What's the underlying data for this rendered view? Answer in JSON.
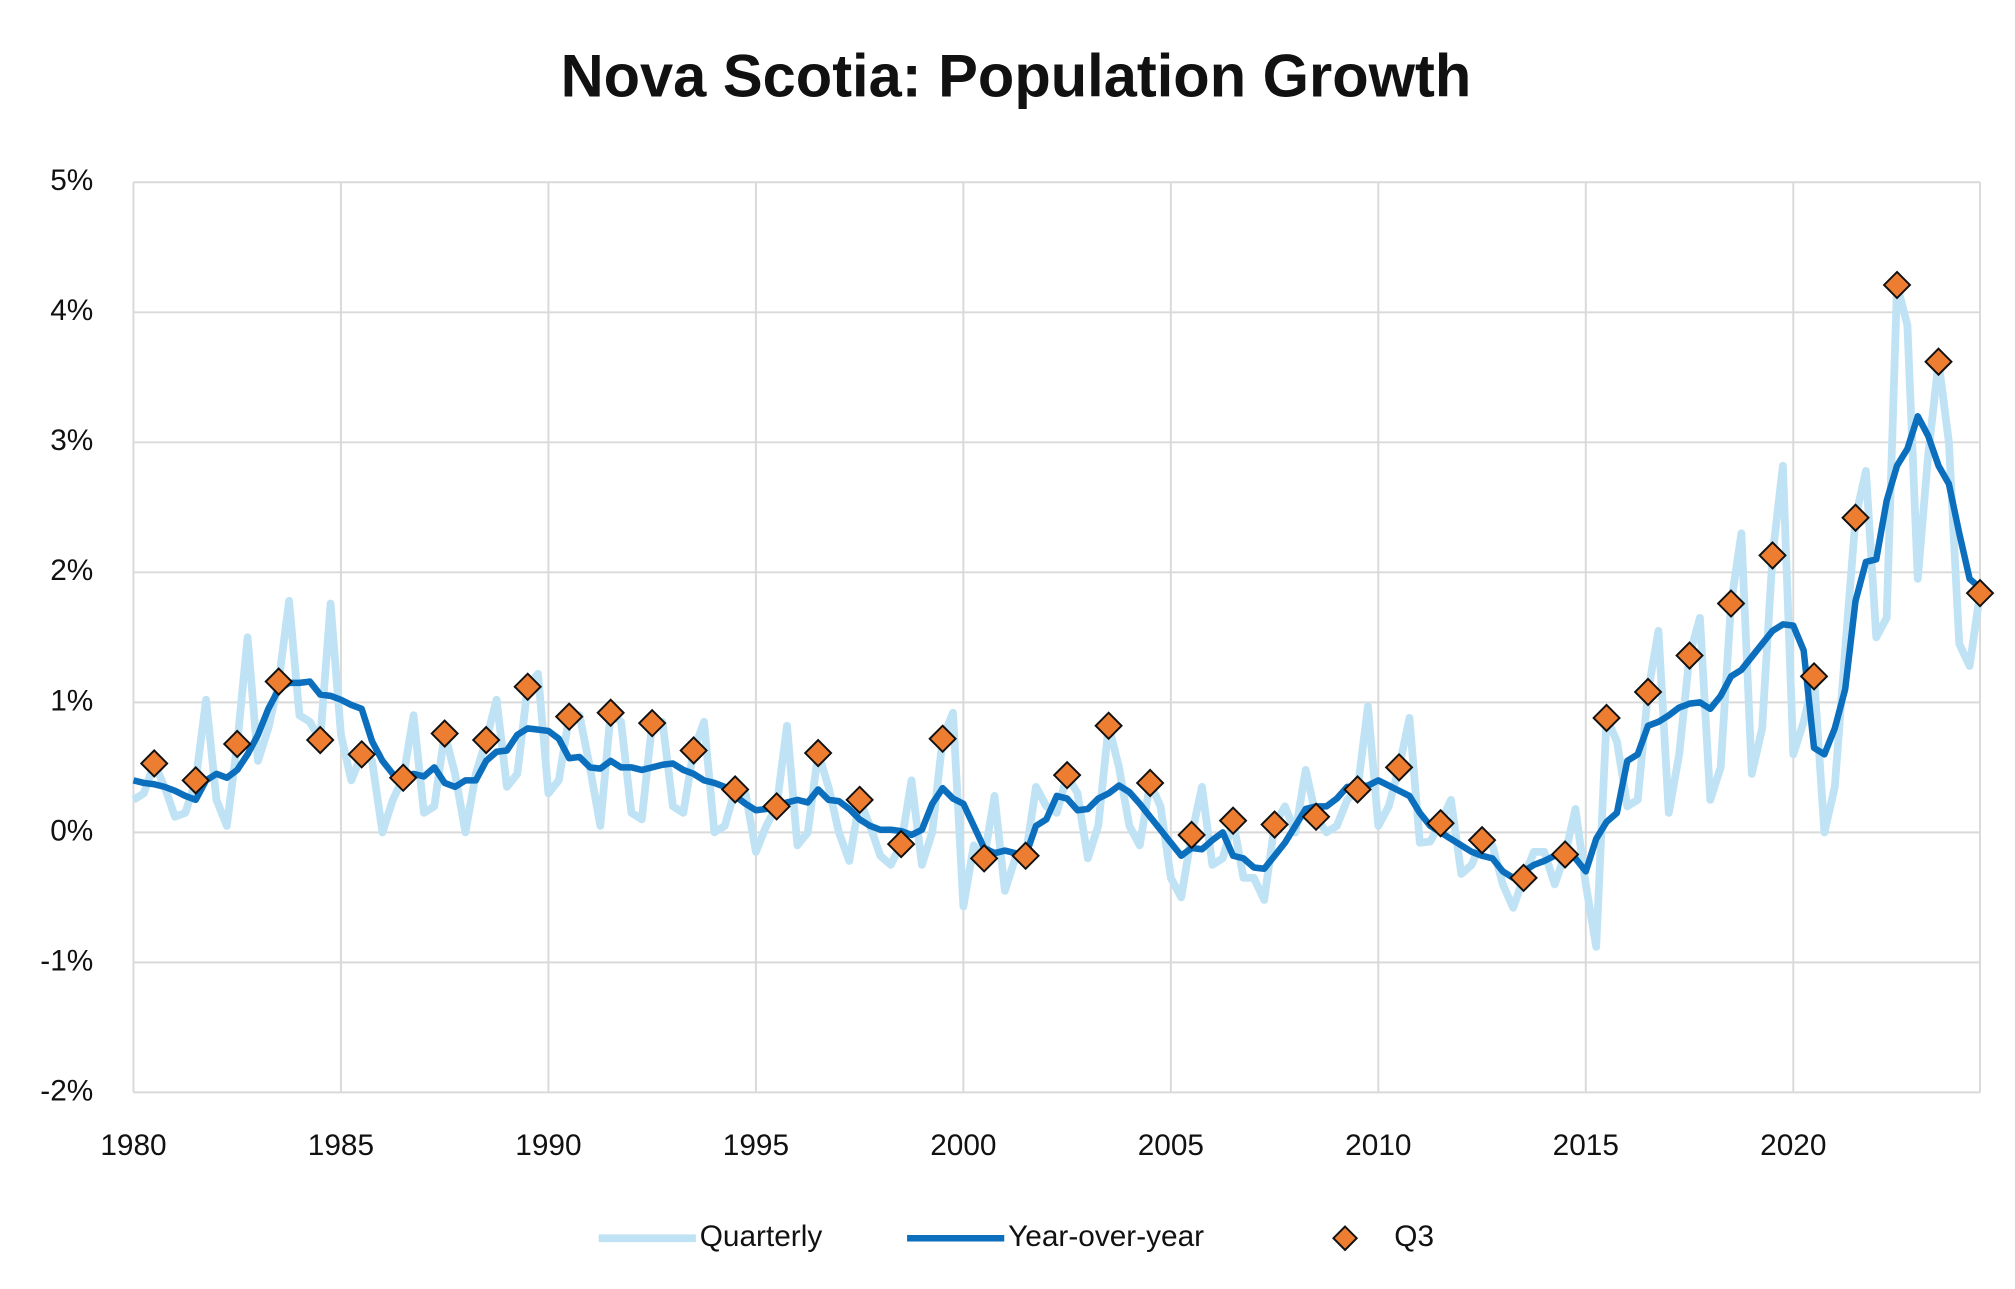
{
  "chart_data": {
    "type": "line",
    "title": "Nova Scotia: Population Growth",
    "xlim": [
      1980,
      2024.5
    ],
    "xticks": [
      1980,
      1985,
      1990,
      1995,
      2000,
      2005,
      2010,
      2015,
      2020
    ],
    "ylim": [
      -2,
      5
    ],
    "yticks": [
      {
        "value": -2,
        "label": "-2%"
      },
      {
        "value": -1,
        "label": "-1%"
      },
      {
        "value": 0,
        "label": "0%"
      },
      {
        "value": 1,
        "label": "1%"
      },
      {
        "value": 2,
        "label": "2%"
      },
      {
        "value": 3,
        "label": "3%"
      },
      {
        "value": 4,
        "label": "4%"
      },
      {
        "value": 5,
        "label": "5%"
      }
    ],
    "grid": true,
    "legend": "bottom",
    "x": [
      1980,
      1980.25,
      1980.5,
      1980.75,
      1981,
      1981.25,
      1981.5,
      1981.75,
      1982,
      1982.25,
      1982.5,
      1982.75,
      1983,
      1983.25,
      1983.5,
      1983.75,
      1984,
      1984.25,
      1984.5,
      1984.75,
      1985,
      1985.25,
      1985.5,
      1985.75,
      1986,
      1986.25,
      1986.5,
      1986.75,
      1987,
      1987.25,
      1987.5,
      1987.75,
      1988,
      1988.25,
      1988.5,
      1988.75,
      1989,
      1989.25,
      1989.5,
      1989.75,
      1990,
      1990.25,
      1990.5,
      1990.75,
      1991,
      1991.25,
      1991.5,
      1991.75,
      1992,
      1992.25,
      1992.5,
      1992.75,
      1993,
      1993.25,
      1993.5,
      1993.75,
      1994,
      1994.25,
      1994.5,
      1994.75,
      1995,
      1995.25,
      1995.5,
      1995.75,
      1996,
      1996.25,
      1996.5,
      1996.75,
      1997,
      1997.25,
      1997.5,
      1997.75,
      1998,
      1998.25,
      1998.5,
      1998.75,
      1999,
      1999.25,
      1999.5,
      1999.75,
      2000,
      2000.25,
      2000.5,
      2000.75,
      2001,
      2001.25,
      2001.5,
      2001.75,
      2002,
      2002.25,
      2002.5,
      2002.75,
      2003,
      2003.25,
      2003.5,
      2003.75,
      2004,
      2004.25,
      2004.5,
      2004.75,
      2005,
      2005.25,
      2005.5,
      2005.75,
      2006,
      2006.25,
      2006.5,
      2006.75,
      2007,
      2007.25,
      2007.5,
      2007.75,
      2008,
      2008.25,
      2008.5,
      2008.75,
      2009,
      2009.25,
      2009.5,
      2009.75,
      2010,
      2010.25,
      2010.5,
      2010.75,
      2011,
      2011.25,
      2011.5,
      2011.75,
      2012,
      2012.25,
      2012.5,
      2012.75,
      2013,
      2013.25,
      2013.5,
      2013.75,
      2014,
      2014.25,
      2014.5,
      2014.75,
      2015,
      2015.25,
      2015.5,
      2015.75,
      2016,
      2016.25,
      2016.5,
      2016.75,
      2017,
      2017.25,
      2017.5,
      2017.75,
      2018,
      2018.25,
      2018.5,
      2018.75,
      2019,
      2019.25,
      2019.5,
      2019.75,
      2020,
      2020.25,
      2020.5,
      2020.75,
      2021,
      2021.25,
      2021.5,
      2021.75,
      2022,
      2022.25,
      2022.5,
      2022.75,
      2023,
      2023.25,
      2023.5,
      2023.75,
      2024,
      2024.25,
      2024.5
    ],
    "series": [
      {
        "name": "Quarterly",
        "color": "#bfe3f4",
        "values": [
          0.25,
          0.3,
          0.53,
          0.35,
          0.12,
          0.15,
          0.4,
          1.02,
          0.25,
          0.05,
          0.68,
          1.5,
          0.55,
          0.8,
          1.16,
          1.78,
          0.9,
          0.85,
          0.71,
          1.76,
          0.75,
          0.4,
          0.6,
          0.55,
          0.0,
          0.25,
          0.42,
          0.9,
          0.15,
          0.2,
          0.76,
          0.45,
          0.0,
          0.45,
          0.71,
          1.02,
          0.35,
          0.45,
          1.12,
          1.22,
          0.3,
          0.4,
          0.89,
          0.9,
          0.5,
          0.05,
          0.92,
          0.85,
          0.15,
          0.1,
          0.84,
          0.85,
          0.2,
          0.15,
          0.63,
          0.85,
          0.0,
          0.05,
          0.33,
          0.3,
          -0.15,
          0.05,
          0.2,
          0.82,
          -0.1,
          0.0,
          0.61,
          0.35,
          0.0,
          -0.22,
          0.25,
          0.05,
          -0.18,
          -0.25,
          -0.09,
          0.4,
          -0.25,
          0.0,
          0.72,
          0.92,
          -0.57,
          -0.1,
          -0.2,
          0.28,
          -0.45,
          -0.2,
          -0.18,
          0.35,
          0.2,
          0.15,
          0.44,
          0.3,
          -0.2,
          0.05,
          0.82,
          0.5,
          0.05,
          -0.1,
          0.38,
          0.2,
          -0.35,
          -0.5,
          -0.02,
          0.35,
          -0.25,
          -0.2,
          0.09,
          -0.35,
          -0.35,
          -0.52,
          0.06,
          0.2,
          0.0,
          0.48,
          0.12,
          0.0,
          0.05,
          0.25,
          0.33,
          0.97,
          0.05,
          0.2,
          0.5,
          0.88,
          -0.08,
          -0.07,
          0.07,
          0.25,
          -0.32,
          -0.25,
          -0.06,
          -0.1,
          -0.4,
          -0.58,
          -0.35,
          -0.15,
          -0.15,
          -0.4,
          -0.17,
          0.18,
          -0.4,
          -0.88,
          0.88,
          0.7,
          0.2,
          0.25,
          1.08,
          1.55,
          0.15,
          0.6,
          1.36,
          1.65,
          0.25,
          0.5,
          1.76,
          2.3,
          0.45,
          0.8,
          2.13,
          2.82,
          0.6,
          0.85,
          1.2,
          0.0,
          0.35,
          1.4,
          2.42,
          2.78,
          1.5,
          1.65,
          4.21,
          3.9,
          1.95,
          2.9,
          3.62,
          3.0,
          1.45,
          1.28,
          1.84
        ]
      },
      {
        "name": "Year-over-year",
        "color": "#0b6fbe",
        "values": [
          0.4,
          0.38,
          0.37,
          0.35,
          0.32,
          0.28,
          0.25,
          0.4,
          0.45,
          0.42,
          0.48,
          0.6,
          0.75,
          0.95,
          1.1,
          1.15,
          1.15,
          1.16,
          1.06,
          1.05,
          1.02,
          0.98,
          0.95,
          0.7,
          0.55,
          0.45,
          0.42,
          0.45,
          0.43,
          0.5,
          0.38,
          0.35,
          0.4,
          0.4,
          0.55,
          0.62,
          0.63,
          0.75,
          0.8,
          0.79,
          0.78,
          0.72,
          0.57,
          0.58,
          0.5,
          0.49,
          0.55,
          0.5,
          0.5,
          0.48,
          0.5,
          0.52,
          0.53,
          0.48,
          0.45,
          0.4,
          0.38,
          0.35,
          0.28,
          0.22,
          0.17,
          0.18,
          0.2,
          0.23,
          0.25,
          0.23,
          0.33,
          0.25,
          0.24,
          0.18,
          0.1,
          0.05,
          0.02,
          0.02,
          0.01,
          -0.02,
          0.02,
          0.22,
          0.34,
          0.26,
          0.22,
          0.05,
          -0.12,
          -0.16,
          -0.14,
          -0.16,
          -0.18,
          0.05,
          0.1,
          0.28,
          0.26,
          0.17,
          0.18,
          0.26,
          0.3,
          0.36,
          0.31,
          0.22,
          0.12,
          0.02,
          -0.08,
          -0.18,
          -0.12,
          -0.13,
          -0.06,
          0.0,
          -0.18,
          -0.2,
          -0.27,
          -0.28,
          -0.18,
          -0.08,
          0.05,
          0.18,
          0.2,
          0.2,
          0.26,
          0.35,
          0.35,
          0.36,
          0.4,
          0.36,
          0.32,
          0.28,
          0.15,
          0.05,
          0.0,
          -0.05,
          -0.1,
          -0.15,
          -0.18,
          -0.2,
          -0.3,
          -0.35,
          -0.3,
          -0.25,
          -0.22,
          -0.18,
          -0.17,
          -0.2,
          -0.3,
          -0.05,
          0.08,
          0.15,
          0.55,
          0.6,
          0.82,
          0.85,
          0.9,
          0.96,
          0.99,
          1.0,
          0.95,
          1.05,
          1.2,
          1.25,
          1.35,
          1.45,
          1.55,
          1.6,
          1.59,
          1.4,
          0.65,
          0.6,
          0.8,
          1.1,
          1.78,
          2.08,
          2.1,
          2.55,
          2.82,
          2.95,
          3.2,
          3.05,
          2.82,
          2.68,
          2.3,
          1.95,
          1.88
        ]
      },
      {
        "name": "Q3",
        "color": "#ed7d31",
        "type": "scatter",
        "marker": "diamond",
        "x": [
          1980.5,
          1981.5,
          1982.5,
          1983.5,
          1984.5,
          1985.5,
          1986.5,
          1987.5,
          1988.5,
          1989.5,
          1990.5,
          1991.5,
          1992.5,
          1993.5,
          1994.5,
          1995.5,
          1996.5,
          1997.5,
          1998.5,
          1999.5,
          2000.5,
          2001.5,
          2002.5,
          2003.5,
          2004.5,
          2005.5,
          2006.5,
          2007.5,
          2008.5,
          2009.5,
          2010.5,
          2011.5,
          2012.5,
          2013.5,
          2014.5,
          2015.5,
          2016.5,
          2017.5,
          2018.5,
          2019.5,
          2020.5,
          2021.5,
          2022.5,
          2023.5,
          2024.5
        ],
        "values": [
          0.53,
          0.4,
          0.68,
          1.16,
          0.71,
          0.6,
          0.42,
          0.76,
          0.71,
          1.12,
          0.89,
          0.92,
          0.84,
          0.63,
          0.33,
          0.2,
          0.61,
          0.25,
          -0.09,
          0.72,
          -0.2,
          -0.18,
          0.44,
          0.82,
          0.38,
          -0.02,
          0.09,
          0.06,
          0.12,
          0.33,
          0.5,
          0.07,
          -0.06,
          -0.35,
          -0.17,
          0.88,
          1.08,
          1.36,
          1.76,
          2.13,
          1.2,
          2.42,
          4.21,
          3.62,
          1.84
        ]
      }
    ]
  }
}
